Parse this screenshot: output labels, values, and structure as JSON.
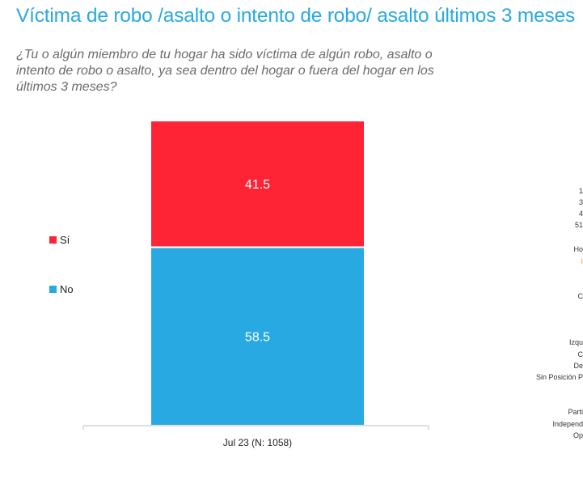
{
  "title": "Víctima de robo /asalto o intento de robo/ asalto últimos 3 meses",
  "subtitle": "¿Tu o algún miembro de tu hogar ha sido víctima de algún robo, asalto o intento de robo o asalto, ya sea dentro del hogar o fuera del hogar en los últimos 3 meses?",
  "legend": [
    {
      "label": "Sí",
      "color": "#fe2335"
    },
    {
      "label": "No",
      "color": "#29a9e1"
    }
  ],
  "chart_data": {
    "type": "bar",
    "stacked": true,
    "categories": [
      "Jul 23 (N: 1058)"
    ],
    "series": [
      {
        "name": "No",
        "values": [
          58.5
        ],
        "color": "#29a9e1"
      },
      {
        "name": "Sí",
        "values": [
          41.5
        ],
        "color": "#fe2335"
      }
    ],
    "ylim": [
      0,
      100
    ],
    "grid": false,
    "legend_position": "left"
  },
  "right_panel_labels": [
    {
      "text": "1",
      "highlight": false
    },
    {
      "text": "3",
      "highlight": false
    },
    {
      "text": "4",
      "highlight": false
    },
    {
      "text": "51",
      "highlight": false
    },
    {
      "text": "Ho",
      "highlight": false
    },
    {
      "text": "I",
      "highlight": true
    },
    {
      "text": "C",
      "highlight": false
    },
    {
      "text": "Izqu",
      "highlight": false
    },
    {
      "text": "C",
      "highlight": false
    },
    {
      "text": "De",
      "highlight": false
    },
    {
      "text": "Sin Posición P",
      "highlight": false
    },
    {
      "text": "Parti",
      "highlight": false
    },
    {
      "text": "Independ",
      "highlight": false
    },
    {
      "text": "Op",
      "highlight": false
    }
  ]
}
